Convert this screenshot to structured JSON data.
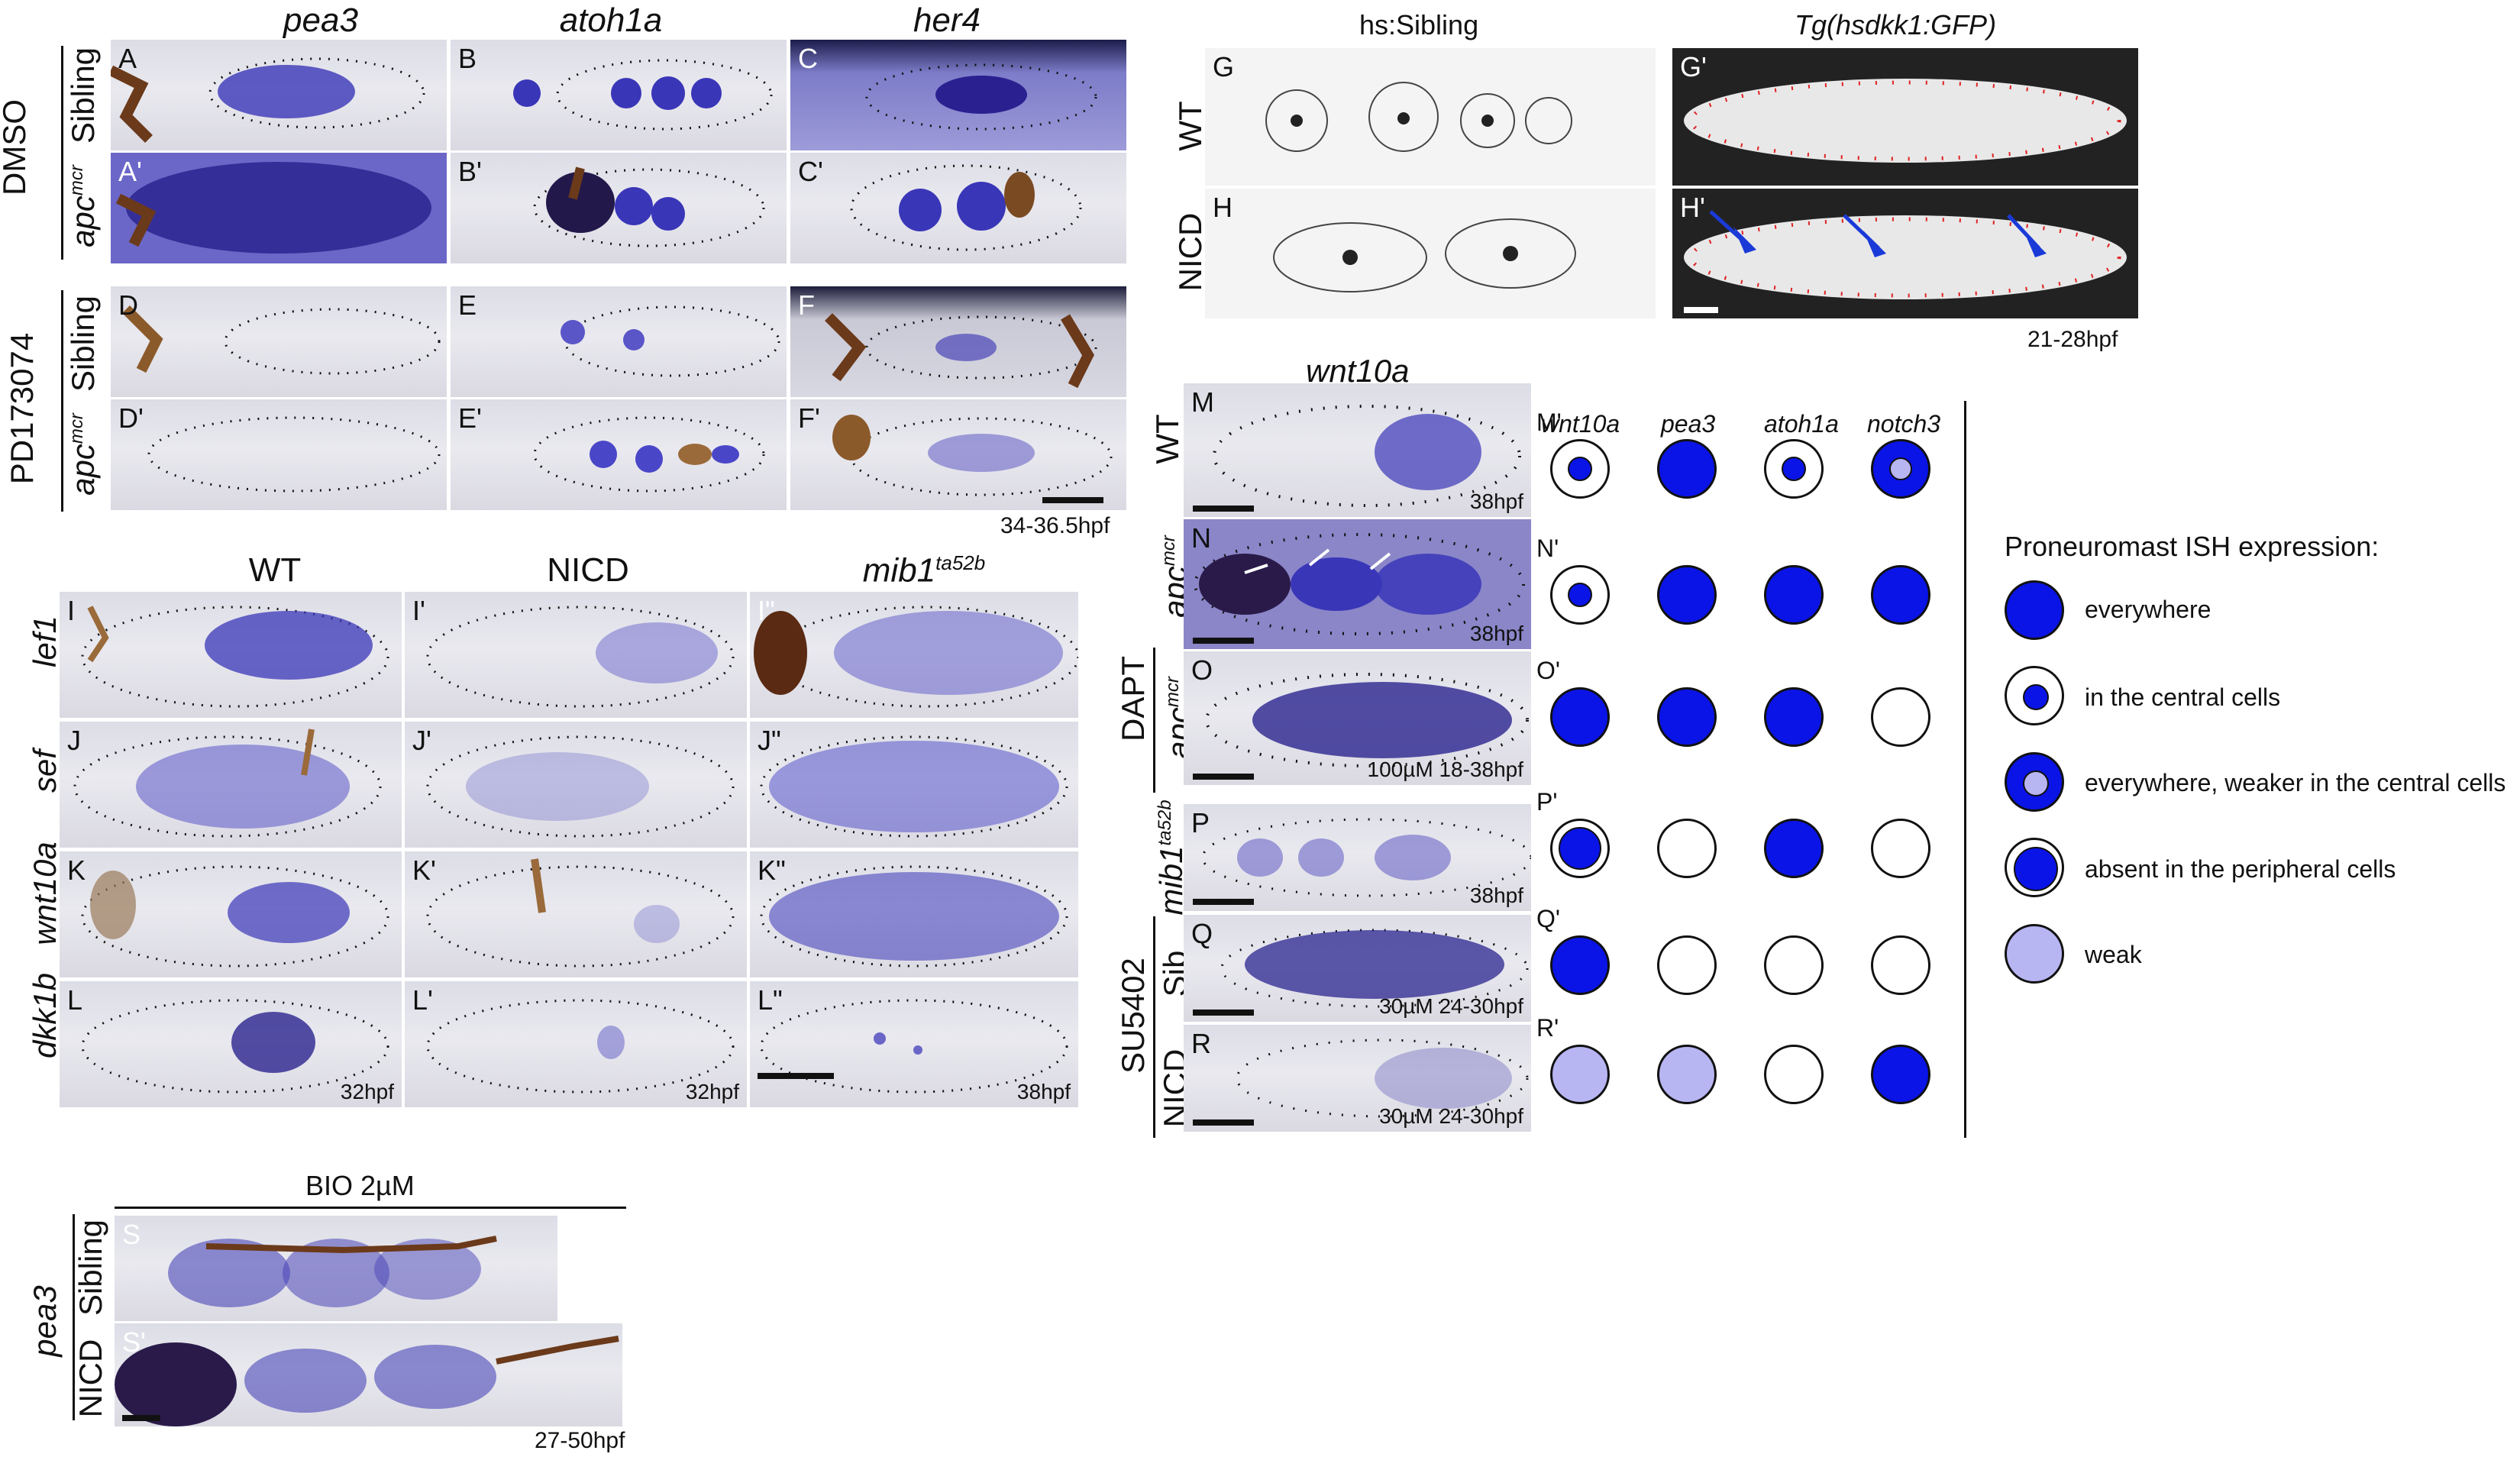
{
  "figure_left": {
    "column_heads": [
      "pea3",
      "atoh1a",
      "her4"
    ],
    "group_dmso": "DMSO",
    "group_pd": "PD173074",
    "row_sibling": "Sibling",
    "row_apc": "apc",
    "apc_sup": "mcr",
    "panels_top": [
      "A",
      "B",
      "C",
      "A'",
      "B'",
      "C'",
      "D",
      "E",
      "F",
      "D'",
      "E'",
      "F'"
    ],
    "time_top": "34-36.5hpf"
  },
  "figure_mid": {
    "column_heads": [
      "WT",
      "NICD",
      "mib1"
    ],
    "mib_sup": "ta52b",
    "row_labels": [
      "lef1",
      "sef",
      "wnt10a",
      "dkk1b"
    ],
    "panels": [
      "I",
      "I'",
      "I\"",
      "J",
      "J'",
      "J\"",
      "K",
      "K'",
      "K\"",
      "L",
      "L'",
      "L\""
    ],
    "time_L": "32hpf",
    "time_L2": "32hpf",
    "time_L3": "38hpf"
  },
  "figure_bio": {
    "header": "BIO 2µM",
    "gene": "pea3",
    "row_sibling": "Sibling",
    "row_nicd": "NICD",
    "panels": [
      "S",
      "S'"
    ],
    "time": "27-50hpf"
  },
  "figure_gh": {
    "col1": "hs:Sibling",
    "col2": "Tg(hsdkk1:GFP)",
    "row_wt": "WT",
    "row_nicd": "NICD",
    "panels": [
      "G",
      "G'",
      "H",
      "H'"
    ],
    "time": "21-28hpf"
  },
  "figure_mr": {
    "header": "wnt10a",
    "panels": [
      "M",
      "N",
      "O",
      "P",
      "Q",
      "R"
    ],
    "row_wt": "WT",
    "row_apc": "apc",
    "apc_sup": "mcr",
    "group_dapt": "DAPT",
    "row_mib": "mib1",
    "mib_sup": "ta52b",
    "group_su": "SU5402",
    "row_sib": "Sib",
    "row_nicd": "NICD",
    "times": [
      "38hpf",
      "38hpf",
      "100µM 18-38hpf",
      "38hpf",
      "30µM 24-30hpf",
      "30µM 24-30hpf"
    ]
  },
  "summary_grid": {
    "column_heads": [
      "wnt10a",
      "pea3",
      "atoh1a",
      "notch3"
    ],
    "row_labels": [
      "M'",
      "N'",
      "O'",
      "P'",
      "Q'",
      "R'"
    ],
    "states": [
      [
        "central",
        "everywhere",
        "central",
        "everywhere-weak-center"
      ],
      [
        "central",
        "everywhere",
        "everywhere",
        "everywhere"
      ],
      [
        "everywhere",
        "everywhere",
        "everywhere",
        "none"
      ],
      [
        "absent-peripheral",
        "none",
        "everywhere",
        "none"
      ],
      [
        "everywhere",
        "none",
        "none",
        "none"
      ],
      [
        "weak",
        "weak",
        "none",
        "everywhere"
      ]
    ],
    "colors": {
      "strong": "#0a14e6",
      "weak": "#b7b5f2"
    }
  },
  "legend": {
    "title": "Proneuromast ISH expression:",
    "items": [
      "everywhere",
      "in the central cells",
      "everywhere, weaker in the central cells",
      "absent in the peripheral cells",
      "weak"
    ]
  }
}
